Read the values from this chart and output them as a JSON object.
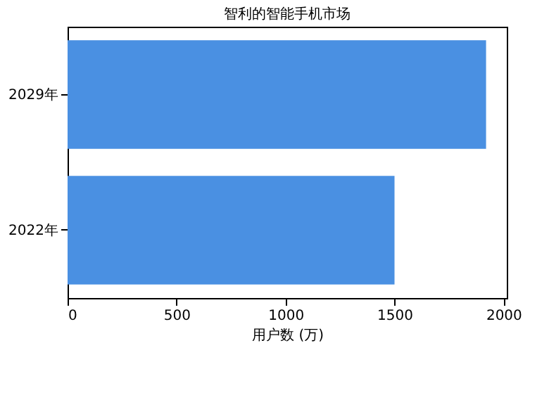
{
  "chart_data": {
    "type": "bar",
    "orientation": "horizontal",
    "title": "智利的智能手机市场",
    "xlabel": "用户数 (万)",
    "categories": [
      "2029年",
      "2022年"
    ],
    "series": [
      {
        "color": "#4a90e2",
        "values": [
          1920,
          1500
        ]
      }
    ],
    "xlim": [
      0,
      2015
    ],
    "xticks": [
      0,
      500,
      1000,
      1500,
      2000
    ],
    "grid": false,
    "legend": false
  }
}
